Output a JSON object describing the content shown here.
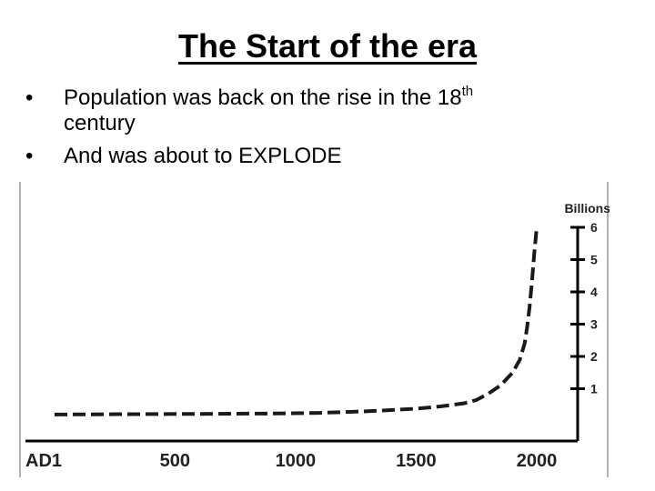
{
  "slide": {
    "title": "The Start of the era",
    "bullets": [
      {
        "marker": "•",
        "text": "Population was back on the rise in the 18",
        "sup": "th",
        "cont": "century"
      },
      {
        "marker": "•",
        "text": "And was about to EXPLODE"
      }
    ]
  },
  "chart_data": {
    "type": "line",
    "title": "",
    "xlabel": "",
    "ylabel": "Billions",
    "x_tick_labels": [
      "AD1",
      "500",
      "1000",
      "1500",
      "2000"
    ],
    "x_ticks": [
      1,
      500,
      1000,
      1500,
      2000
    ],
    "y_ticks": [
      1,
      2,
      3,
      4,
      5,
      6
    ],
    "y_tick_labels": [
      "1",
      "2",
      "3",
      "4",
      "5",
      "6"
    ],
    "xlim": [
      1,
      2000
    ],
    "ylim": [
      0,
      6
    ],
    "y_axis_position": "right",
    "line_style": "dashed",
    "grid": false,
    "series": [
      {
        "x": [
          1,
          300,
          600,
          900,
          1100,
          1300,
          1500,
          1600,
          1700,
          1750,
          1800,
          1850,
          1900,
          1930,
          1950,
          1960,
          1970,
          1980,
          1990,
          2000
        ],
        "y": [
          0.2,
          0.21,
          0.22,
          0.23,
          0.25,
          0.3,
          0.38,
          0.45,
          0.55,
          0.65,
          0.85,
          1.1,
          1.5,
          1.9,
          2.4,
          2.9,
          3.5,
          4.3,
          5.2,
          6.0
        ]
      }
    ],
    "colors": {
      "line": "#1a1a1a",
      "axis": "#000000",
      "frame": "#999999"
    }
  }
}
